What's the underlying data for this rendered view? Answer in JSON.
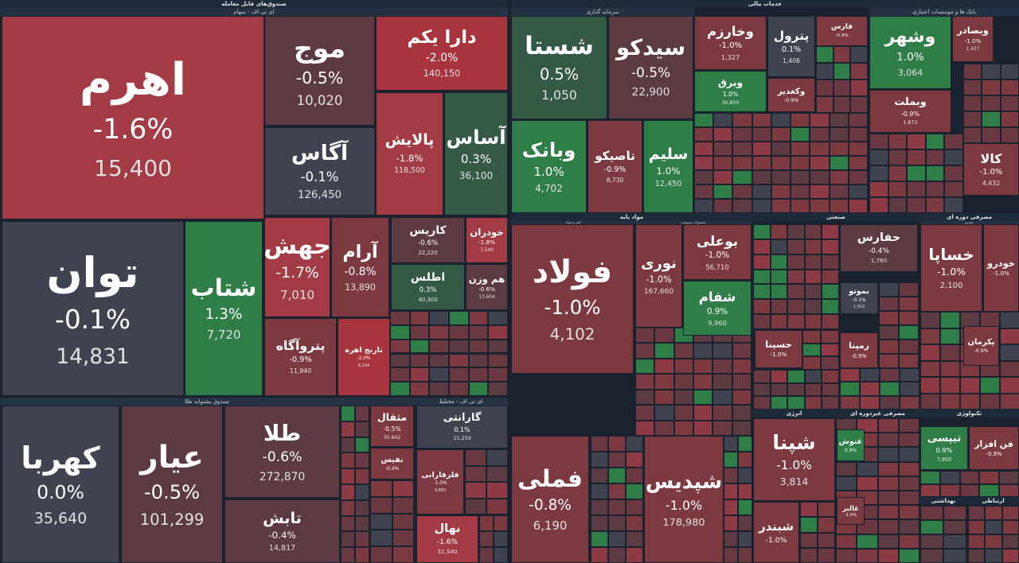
{
  "sectors": [
    "صندوق‌های قابل معامله",
    "خدمات مالی",
    "مواد پایه",
    "صنعتی",
    "مصرفی دوره ای",
    "انرژی",
    "مصرفی غیردوره ای",
    "تکنولوژی",
    "بهداشتی",
    "ارتباطی"
  ],
  "subgroups": [
    "ای تی اف - سهام",
    "صندوق پشتوانه طلا",
    "ای تی اف - مختلط",
    "سرمایه گذاری",
    "بانک ها و موسسات اعتباری",
    "آهن و فولاد",
    "محصولات شیمیایی",
    "خودرو"
  ],
  "tiles": [
    {
      "name": "اهرم",
      "change": "-1.6%",
      "price": "15,400",
      "color": "#a33b45"
    },
    {
      "name": "توان",
      "change": "-0.1%",
      "price": "14,831",
      "color": "#3f4350"
    },
    {
      "name": "شتاب",
      "change": "1.3%",
      "price": "7,720",
      "color": "#2f7d47"
    },
    {
      "name": "موج",
      "change": "-0.5%",
      "price": "10,020",
      "color": "#5b3a42"
    },
    {
      "name": "آگاس",
      "change": "-0.1%",
      "price": "126,450",
      "color": "#3f4350"
    },
    {
      "name": "دارا یکم",
      "change": "-2.0%",
      "price": "140,150",
      "color": "#a8343e"
    },
    {
      "name": "پالایش",
      "change": "-1.8%",
      "price": "118,500",
      "color": "#a33b45"
    },
    {
      "name": "آساس",
      "change": "0.3%",
      "price": "36,100",
      "color": "#345a46"
    },
    {
      "name": "جهش",
      "change": "-1.7%",
      "price": "7,010",
      "color": "#a33b45"
    },
    {
      "name": "آرام",
      "change": "-0.8%",
      "price": "13,890",
      "color": "#7c3940"
    },
    {
      "name": "پتروآگاه",
      "change": "-0.9%",
      "price": "11,940",
      "color": "#7c3940"
    },
    {
      "name": "نارنج اهره",
      "change": "-2.0%",
      "price": "8,194",
      "color": "#a8343e"
    },
    {
      "name": "کاریس",
      "change": "-0.6%",
      "price": "22,220",
      "color": "#5b3a42"
    },
    {
      "name": "اطلس",
      "change": "0.3%",
      "price": "40,300",
      "color": "#345a46"
    },
    {
      "name": "خودران",
      "change": "-1.8%",
      "price": "7,540",
      "color": "#a33b45"
    },
    {
      "name": "هم وزن",
      "change": "-0.6%",
      "price": "13,604",
      "color": "#5b3a42"
    },
    {
      "name": "کهربا",
      "change": "0.0%",
      "price": "35,640",
      "color": "#3f4350"
    },
    {
      "name": "عیار",
      "change": "-0.5%",
      "price": "101,299",
      "color": "#5b3a42"
    },
    {
      "name": "طلا",
      "change": "-0.6%",
      "price": "272,870",
      "color": "#5b3a42"
    },
    {
      "name": "تابش",
      "change": "-0.4%",
      "price": "14,817",
      "color": "#5b3a42"
    },
    {
      "name": "مثقال",
      "change": "-0.5%",
      "price": "30,642",
      "color": "#7c3940"
    },
    {
      "name": "نفیس",
      "change": "-0.4%",
      "color": "#7c3940"
    },
    {
      "name": "گارانتی",
      "change": "0.1%",
      "price": "15,259",
      "color": "#3f4350"
    },
    {
      "name": "فلزفارابی",
      "change": "-1.0%",
      "price": "9,883",
      "color": "#7c3940"
    },
    {
      "name": "نهال",
      "change": "-1.6%",
      "price": "31,540",
      "color": "#a33b45"
    },
    {
      "name": "شستا",
      "change": "0.5%",
      "price": "1,050",
      "color": "#345a46"
    },
    {
      "name": "سیدکو",
      "change": "-0.5%",
      "price": "22,900",
      "color": "#5b3a42"
    },
    {
      "name": "وبانک",
      "change": "1.0%",
      "price": "4,702",
      "color": "#2f7d47"
    },
    {
      "name": "تاصیکو",
      "change": "-0.9%",
      "price": "8,730",
      "color": "#7c3940"
    },
    {
      "name": "سلیم",
      "change": "1.0%",
      "price": "12,450",
      "color": "#2f7d47"
    },
    {
      "name": "وخارزم",
      "change": "-1.0%",
      "price": "1,327",
      "color": "#7c3940"
    },
    {
      "name": "وبرق",
      "change": "1.0%",
      "price": "36,800",
      "color": "#2f7d47"
    },
    {
      "name": "پترول",
      "change": "0.1%",
      "price": "1,406",
      "color": "#3f4350"
    },
    {
      "name": "وکغدیر",
      "change": "-0.9%",
      "color": "#7c3940"
    },
    {
      "name": "فارس",
      "change": "-0.9%",
      "color": "#7c3940"
    },
    {
      "name": "وشهر",
      "change": "1.0%",
      "price": "3,064",
      "color": "#2f7d47"
    },
    {
      "name": "وبصادر",
      "change": "-1.0%",
      "price": "1,427",
      "color": "#7c3940"
    },
    {
      "name": "وبملت",
      "change": "-0.9%",
      "price": "1,872",
      "color": "#7c3940"
    },
    {
      "name": "کالا",
      "change": "-1.0%",
      "price": "4,432",
      "color": "#7c3940"
    },
    {
      "name": "فولاد",
      "change": "-1.0%",
      "price": "4,102",
      "color": "#7c3940"
    },
    {
      "name": "فملی",
      "change": "-0.8%",
      "price": "6,190",
      "color": "#7c3940"
    },
    {
      "name": "نوری",
      "change": "-1.0%",
      "price": "167,660",
      "color": "#7c3940"
    },
    {
      "name": "بوعلی",
      "change": "-1.0%",
      "price": "56,710",
      "color": "#7c3940"
    },
    {
      "name": "شفام",
      "change": "0.9%",
      "price": "9,960",
      "color": "#2f7d47"
    },
    {
      "name": "شپدیس",
      "change": "-1.0%",
      "price": "178,980",
      "color": "#7c3940"
    },
    {
      "name": "حفارس",
      "change": "-0.4%",
      "price": "1,760",
      "color": "#5b3a42"
    },
    {
      "name": "حسینا",
      "change": "-1.0%",
      "color": "#7c3940"
    },
    {
      "name": "بموتو",
      "change": "-0.1%",
      "price": "1,503",
      "color": "#3f4350"
    },
    {
      "name": "رمپنا",
      "change": "-0.9%",
      "color": "#7c3940"
    },
    {
      "name": "خساپا",
      "change": "-1.0%",
      "price": "2,100",
      "color": "#7c3940"
    },
    {
      "name": "خودرو",
      "change": "-1.0%",
      "color": "#7c3940"
    },
    {
      "name": "پکرمان",
      "change": "-0.9%",
      "color": "#7c3940"
    },
    {
      "name": "شپنا",
      "change": "-1.0%",
      "price": "3,814",
      "color": "#7c3940"
    },
    {
      "name": "شبندر",
      "change": "-1.0%",
      "color": "#7c3940"
    },
    {
      "name": "غنوش",
      "change": "0.9%",
      "color": "#2f7d47"
    },
    {
      "name": "تیپسی",
      "change": "0.9%",
      "price": "7,800",
      "color": "#2f7d47"
    },
    {
      "name": "فن افزار",
      "change": "-0.9%",
      "color": "#7c3940"
    },
    {
      "name": "غالبر",
      "change": "-1.0%",
      "color": "#7c3940"
    }
  ]
}
